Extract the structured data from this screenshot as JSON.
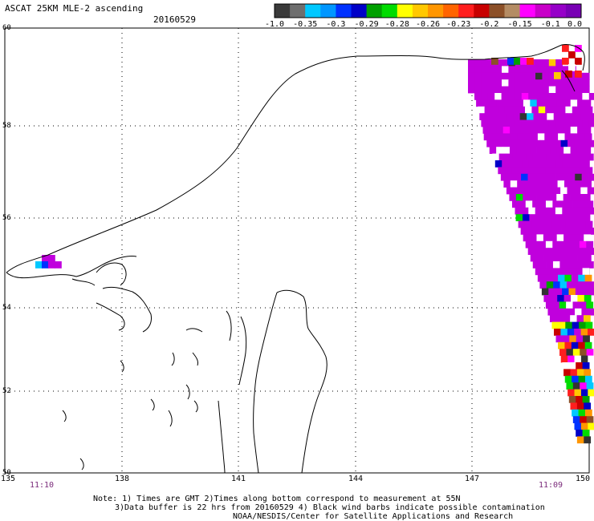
{
  "header": {
    "title": "ASCAT 25KM MLE-2 ascending",
    "date": "20160529"
  },
  "colorbar": {
    "colors": [
      "#3a3a3a",
      "#6e6e6e",
      "#00c8ff",
      "#0096ff",
      "#0032ff",
      "#0000c8",
      "#00a000",
      "#00dc00",
      "#ffff00",
      "#ffc800",
      "#ff9600",
      "#ff6400",
      "#ff1e1e",
      "#c80000",
      "#8c5028",
      "#b48c64",
      "#ff00ff",
      "#c800c8",
      "#9600c8",
      "#7800b4"
    ],
    "ticks": [
      "-1.0",
      "-0.35",
      "-0.3",
      "-0.29",
      "-0.28",
      "-0.26",
      "-0.23",
      "-0.2",
      "-0.15",
      "-0.1",
      "0.0"
    ]
  },
  "axes": {
    "lat_ticks": [
      "60",
      "58",
      "56",
      "54",
      "52",
      "50"
    ],
    "lon_ticks": [
      "135",
      "138",
      "141",
      "144",
      "147",
      "150"
    ]
  },
  "times": {
    "left": "11:10",
    "right": "11:09"
  },
  "footer": {
    "line1": "Note: 1) Times are GMT 2)Times along bottom correspond to measurement at 55N",
    "line2": "3)Data buffer is 22 hrs from 20160529 4) Black wind barbs indicate possible contamination",
    "line3": "NOAA/NESDIS/Center for Satellite Applications and Research"
  }
}
